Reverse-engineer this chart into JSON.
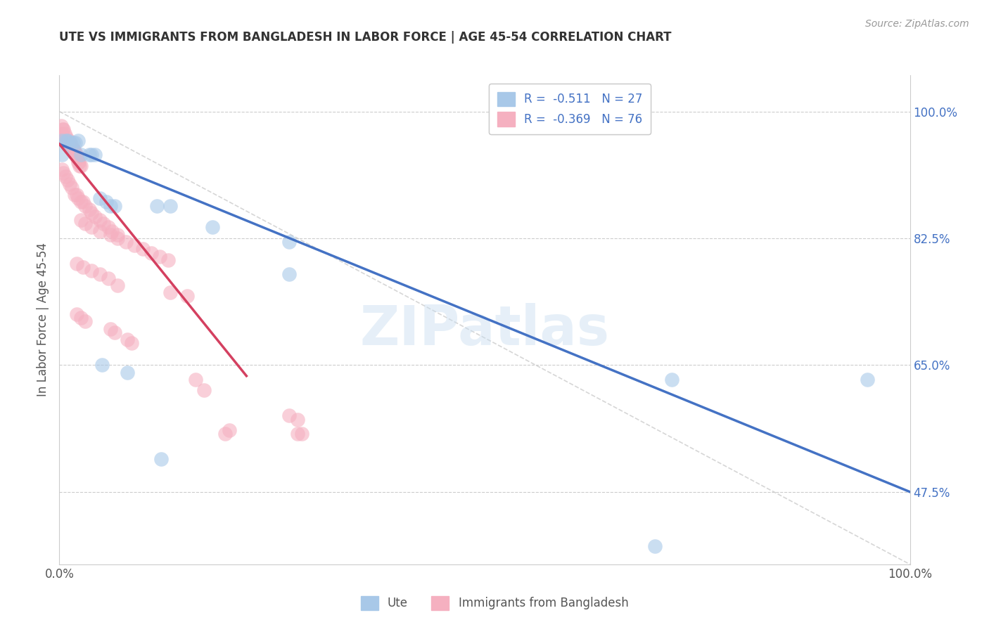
{
  "title": "UTE VS IMMIGRANTS FROM BANGLADESH IN LABOR FORCE | AGE 45-54 CORRELATION CHART",
  "source": "Source: ZipAtlas.com",
  "ylabel": "In Labor Force | Age 45-54",
  "xlim": [
    0.0,
    1.0
  ],
  "ylim": [
    0.375,
    1.05
  ],
  "yticks": [
    0.475,
    0.65,
    0.825,
    1.0
  ],
  "ytick_labels": [
    "47.5%",
    "65.0%",
    "82.5%",
    "100.0%"
  ],
  "xtick_labels_left": "0.0%",
  "xtick_labels_right": "100.0%",
  "watermark": "ZIPatlas",
  "blue_line": [
    [
      0.0,
      0.955
    ],
    [
      1.0,
      0.475
    ]
  ],
  "pink_line": [
    [
      0.0,
      0.955
    ],
    [
      0.22,
      0.635
    ]
  ],
  "diag_line": [
    [
      0.0,
      1.0
    ],
    [
      1.0,
      0.375
    ]
  ],
  "blue_scatter": [
    [
      0.003,
      0.96
    ],
    [
      0.008,
      0.96
    ],
    [
      0.01,
      0.96
    ],
    [
      0.013,
      0.957
    ],
    [
      0.016,
      0.957
    ],
    [
      0.019,
      0.957
    ],
    [
      0.022,
      0.96
    ],
    [
      0.003,
      0.94
    ],
    [
      0.025,
      0.94
    ],
    [
      0.035,
      0.94
    ],
    [
      0.038,
      0.94
    ],
    [
      0.042,
      0.94
    ],
    [
      0.048,
      0.88
    ],
    [
      0.055,
      0.875
    ],
    [
      0.06,
      0.87
    ],
    [
      0.065,
      0.87
    ],
    [
      0.115,
      0.87
    ],
    [
      0.13,
      0.87
    ],
    [
      0.18,
      0.84
    ],
    [
      0.27,
      0.82
    ],
    [
      0.27,
      0.775
    ],
    [
      0.05,
      0.65
    ],
    [
      0.08,
      0.64
    ],
    [
      0.72,
      0.63
    ],
    [
      0.95,
      0.63
    ],
    [
      0.12,
      0.52
    ],
    [
      0.7,
      0.4
    ]
  ],
  "pink_scatter": [
    [
      0.002,
      0.98
    ],
    [
      0.003,
      0.97
    ],
    [
      0.004,
      0.975
    ],
    [
      0.005,
      0.975
    ],
    [
      0.006,
      0.97
    ],
    [
      0.007,
      0.96
    ],
    [
      0.008,
      0.965
    ],
    [
      0.009,
      0.96
    ],
    [
      0.01,
      0.955
    ],
    [
      0.011,
      0.96
    ],
    [
      0.012,
      0.955
    ],
    [
      0.013,
      0.95
    ],
    [
      0.014,
      0.955
    ],
    [
      0.015,
      0.95
    ],
    [
      0.016,
      0.948
    ],
    [
      0.017,
      0.945
    ],
    [
      0.018,
      0.945
    ],
    [
      0.019,
      0.94
    ],
    [
      0.02,
      0.94
    ],
    [
      0.021,
      0.935
    ],
    [
      0.022,
      0.93
    ],
    [
      0.023,
      0.93
    ],
    [
      0.024,
      0.925
    ],
    [
      0.025,
      0.925
    ],
    [
      0.003,
      0.92
    ],
    [
      0.005,
      0.915
    ],
    [
      0.007,
      0.91
    ],
    [
      0.01,
      0.905
    ],
    [
      0.012,
      0.9
    ],
    [
      0.015,
      0.895
    ],
    [
      0.018,
      0.885
    ],
    [
      0.02,
      0.885
    ],
    [
      0.022,
      0.88
    ],
    [
      0.025,
      0.875
    ],
    [
      0.028,
      0.875
    ],
    [
      0.03,
      0.87
    ],
    [
      0.035,
      0.865
    ],
    [
      0.038,
      0.86
    ],
    [
      0.042,
      0.855
    ],
    [
      0.048,
      0.85
    ],
    [
      0.052,
      0.845
    ],
    [
      0.058,
      0.84
    ],
    [
      0.062,
      0.835
    ],
    [
      0.068,
      0.83
    ],
    [
      0.025,
      0.85
    ],
    [
      0.03,
      0.845
    ],
    [
      0.038,
      0.84
    ],
    [
      0.048,
      0.835
    ],
    [
      0.06,
      0.83
    ],
    [
      0.068,
      0.825
    ],
    [
      0.078,
      0.82
    ],
    [
      0.088,
      0.815
    ],
    [
      0.098,
      0.81
    ],
    [
      0.108,
      0.805
    ],
    [
      0.118,
      0.8
    ],
    [
      0.128,
      0.795
    ],
    [
      0.02,
      0.79
    ],
    [
      0.028,
      0.785
    ],
    [
      0.038,
      0.78
    ],
    [
      0.048,
      0.775
    ],
    [
      0.058,
      0.77
    ],
    [
      0.068,
      0.76
    ],
    [
      0.13,
      0.75
    ],
    [
      0.15,
      0.745
    ],
    [
      0.02,
      0.72
    ],
    [
      0.025,
      0.715
    ],
    [
      0.03,
      0.71
    ],
    [
      0.06,
      0.7
    ],
    [
      0.065,
      0.695
    ],
    [
      0.08,
      0.685
    ],
    [
      0.085,
      0.68
    ],
    [
      0.16,
      0.63
    ],
    [
      0.17,
      0.615
    ],
    [
      0.27,
      0.58
    ],
    [
      0.28,
      0.575
    ],
    [
      0.195,
      0.555
    ],
    [
      0.2,
      0.56
    ],
    [
      0.28,
      0.555
    ],
    [
      0.285,
      0.555
    ]
  ]
}
